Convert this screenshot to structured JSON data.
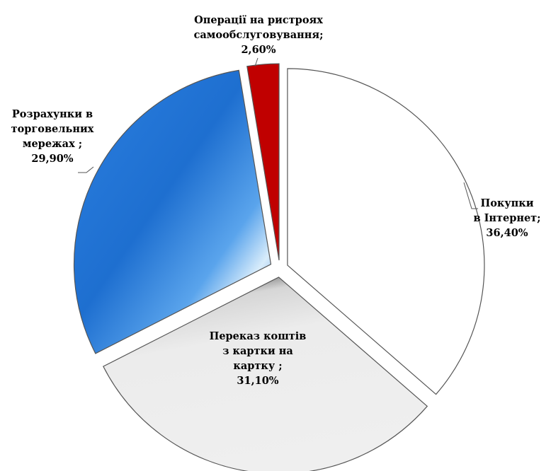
{
  "chart_data": {
    "type": "pie",
    "exploded": true,
    "start_angle_deg": 0,
    "direction": "clockwise",
    "slices": [
      {
        "name": "Покупки в Інтернет",
        "value": 36.4,
        "label_lines": [
          "Покупки",
          "в Інтернет;",
          "36,40%"
        ],
        "fill": "#ffffff",
        "fill_style": "plain"
      },
      {
        "name": "Переказ коштів з картки на картку",
        "value": 31.1,
        "label_lines": [
          "Переказ коштів",
          "з картки на",
          "картку ;",
          "31,10%"
        ],
        "fill": "#ececec",
        "fill_style": "textured-grey"
      },
      {
        "name": "Розрахунки в торговельних мережах",
        "value": 29.9,
        "label_lines": [
          "Розрахунки в",
          "торговельних",
          "мережах ;",
          "29,90%"
        ],
        "fill": "#1e6fd0",
        "fill_style": "textured-blue"
      },
      {
        "name": "Операції на ристроях самообслуговування",
        "value": 2.6,
        "label_lines": [
          "Операції на ристроях",
          "самообслуговування;",
          "2,60%"
        ],
        "fill": "#c00000",
        "fill_style": "plain"
      }
    ],
    "colors": {
      "outline": "#555555",
      "leader": "#555555"
    }
  }
}
